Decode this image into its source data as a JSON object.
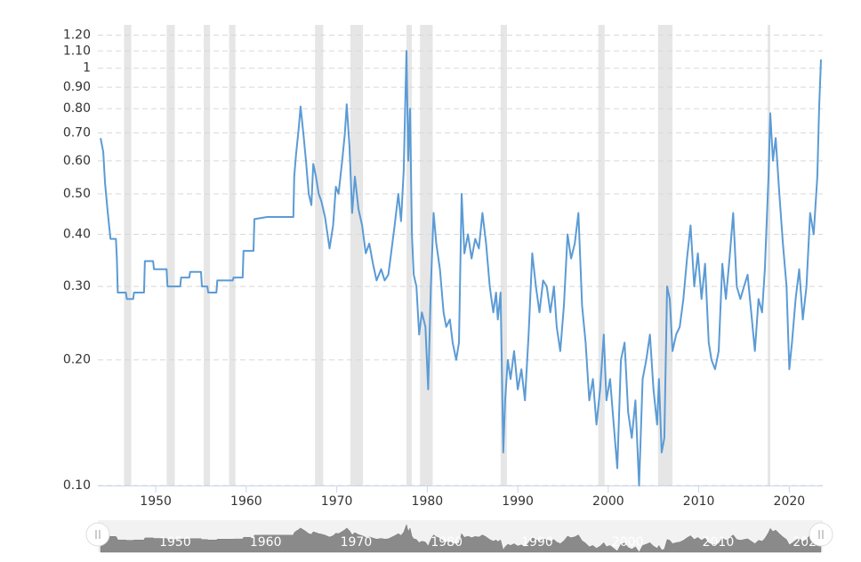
{
  "chart_data": {
    "type": "line",
    "log_y": true,
    "grid": true,
    "xlim": [
      1943.6,
      2023.7
    ],
    "ylim": [
      0.1,
      1.27
    ],
    "xticks": [
      1950,
      1960,
      1970,
      1980,
      1990,
      2000,
      2010,
      2020
    ],
    "yticks": [
      {
        "value": 0.1,
        "label": "0.10"
      },
      {
        "value": 0.2,
        "label": "0.20"
      },
      {
        "value": 0.3,
        "label": "0.30"
      },
      {
        "value": 0.4,
        "label": "0.40"
      },
      {
        "value": 0.5,
        "label": "0.50"
      },
      {
        "value": 0.6,
        "label": "0.60"
      },
      {
        "value": 0.7,
        "label": "0.70"
      },
      {
        "value": 0.8,
        "label": "0.80"
      },
      {
        "value": 0.9,
        "label": "0.90"
      },
      1,
      {
        "value": 1.1,
        "label": "1.10"
      },
      {
        "value": 1.2,
        "label": "1.20"
      }
    ],
    "shaded_ranges": [
      [
        1946.5,
        1947.3
      ],
      [
        1951.2,
        1952.1
      ],
      [
        1955.3,
        1956.0
      ],
      [
        1958.1,
        1958.8
      ],
      [
        1967.6,
        1968.5
      ],
      [
        1971.5,
        1972.9
      ],
      [
        1977.7,
        1978.3
      ],
      [
        1979.2,
        1980.6
      ],
      [
        1988.1,
        1988.8
      ],
      [
        1998.9,
        1999.6
      ],
      [
        2005.5,
        2007.1
      ],
      [
        2017.6,
        2017.9
      ]
    ],
    "shade_color": "#e6e6e6",
    "x": [
      1943.9,
      1944.2,
      1944.4,
      1944.7,
      1945.0,
      1945.6,
      1945.7,
      1945.8,
      1946.7,
      1946.8,
      1947.5,
      1947.6,
      1948.7,
      1948.8,
      1949.7,
      1949.8,
      1951.2,
      1951.3,
      1952.7,
      1952.8,
      1953.7,
      1953.8,
      1955.0,
      1955.1,
      1955.7,
      1955.8,
      1956.7,
      1956.8,
      1958.5,
      1958.6,
      1959.6,
      1959.7,
      1960.8,
      1960.9,
      1962.3,
      1965.2,
      1965.3,
      1965.5,
      1965.8,
      1966.0,
      1966.3,
      1966.6,
      1966.9,
      1967.2,
      1967.4,
      1967.7,
      1968.0,
      1968.3,
      1968.7,
      1969.2,
      1969.6,
      1969.9,
      1970.2,
      1970.6,
      1970.9,
      1971.1,
      1971.4,
      1971.7,
      1972.0,
      1972.4,
      1972.8,
      1973.2,
      1973.6,
      1974.0,
      1974.4,
      1974.9,
      1975.3,
      1975.7,
      1976.0,
      1976.4,
      1976.8,
      1977.1,
      1977.4,
      1977.7,
      1977.9,
      1978.1,
      1978.3,
      1978.5,
      1978.8,
      1979.1,
      1979.4,
      1979.8,
      1980.1,
      1980.4,
      1980.7,
      1981.0,
      1981.4,
      1981.8,
      1982.1,
      1982.5,
      1982.8,
      1983.2,
      1983.5,
      1983.8,
      1984.1,
      1984.5,
      1984.9,
      1985.3,
      1985.7,
      1986.1,
      1986.5,
      1986.9,
      1987.3,
      1987.6,
      1987.8,
      1988.1,
      1988.4,
      1988.6,
      1988.9,
      1989.2,
      1989.6,
      1990.0,
      1990.4,
      1990.8,
      1991.2,
      1991.6,
      1992.0,
      1992.4,
      1992.8,
      1993.2,
      1993.6,
      1994.0,
      1994.3,
      1994.7,
      1995.1,
      1995.5,
      1995.9,
      1996.3,
      1996.7,
      1997.1,
      1997.5,
      1997.9,
      1998.3,
      1998.7,
      1999.1,
      1999.5,
      1999.8,
      2000.2,
      2000.6,
      2001.0,
      2001.4,
      2001.8,
      2002.2,
      2002.6,
      2003.0,
      2003.4,
      2003.8,
      2004.2,
      2004.6,
      2005.0,
      2005.4,
      2005.6,
      2005.9,
      2006.2,
      2006.5,
      2006.8,
      2007.1,
      2007.5,
      2007.9,
      2008.3,
      2008.7,
      2009.1,
      2009.5,
      2009.9,
      2010.3,
      2010.7,
      2011.1,
      2011.4,
      2011.8,
      2012.2,
      2012.6,
      2013.0,
      2013.4,
      2013.8,
      2014.2,
      2014.6,
      2015.0,
      2015.4,
      2015.8,
      2016.2,
      2016.6,
      2017.0,
      2017.3,
      2017.7,
      2017.9,
      2018.2,
      2018.5,
      2018.9,
      2019.3,
      2019.7,
      2020.0,
      2020.3,
      2020.7,
      2021.1,
      2021.5,
      2021.9,
      2022.3,
      2022.7,
      2023.1,
      2023.3,
      2023.5
    ],
    "series": [
      {
        "color": "#5b9bd5",
        "values": [
          0.68,
          0.63,
          0.53,
          0.45,
          0.39,
          0.39,
          0.35,
          0.29,
          0.29,
          0.28,
          0.28,
          0.29,
          0.29,
          0.345,
          0.345,
          0.33,
          0.33,
          0.3,
          0.3,
          0.315,
          0.315,
          0.325,
          0.325,
          0.3,
          0.3,
          0.29,
          0.29,
          0.31,
          0.31,
          0.315,
          0.315,
          0.365,
          0.365,
          0.435,
          0.44,
          0.44,
          0.55,
          0.62,
          0.72,
          0.81,
          0.7,
          0.6,
          0.5,
          0.47,
          0.59,
          0.55,
          0.5,
          0.48,
          0.44,
          0.37,
          0.42,
          0.52,
          0.5,
          0.6,
          0.7,
          0.82,
          0.65,
          0.45,
          0.55,
          0.46,
          0.42,
          0.36,
          0.38,
          0.34,
          0.31,
          0.33,
          0.31,
          0.32,
          0.36,
          0.42,
          0.5,
          0.43,
          0.57,
          1.1,
          0.6,
          0.8,
          0.4,
          0.32,
          0.3,
          0.23,
          0.26,
          0.24,
          0.17,
          0.3,
          0.45,
          0.38,
          0.33,
          0.26,
          0.24,
          0.25,
          0.22,
          0.2,
          0.22,
          0.5,
          0.36,
          0.4,
          0.35,
          0.39,
          0.37,
          0.45,
          0.38,
          0.3,
          0.26,
          0.29,
          0.25,
          0.29,
          0.12,
          0.16,
          0.2,
          0.18,
          0.21,
          0.17,
          0.19,
          0.16,
          0.23,
          0.36,
          0.3,
          0.26,
          0.31,
          0.3,
          0.26,
          0.3,
          0.24,
          0.21,
          0.27,
          0.4,
          0.35,
          0.38,
          0.45,
          0.27,
          0.22,
          0.16,
          0.18,
          0.14,
          0.17,
          0.23,
          0.16,
          0.18,
          0.14,
          0.11,
          0.2,
          0.22,
          0.15,
          0.13,
          0.16,
          0.1,
          0.18,
          0.2,
          0.23,
          0.17,
          0.14,
          0.18,
          0.12,
          0.13,
          0.3,
          0.28,
          0.21,
          0.23,
          0.24,
          0.28,
          0.35,
          0.42,
          0.3,
          0.36,
          0.28,
          0.34,
          0.22,
          0.2,
          0.19,
          0.21,
          0.34,
          0.28,
          0.35,
          0.45,
          0.3,
          0.28,
          0.3,
          0.32,
          0.26,
          0.21,
          0.28,
          0.26,
          0.33,
          0.55,
          0.78,
          0.6,
          0.68,
          0.5,
          0.38,
          0.3,
          0.19,
          0.22,
          0.28,
          0.33,
          0.25,
          0.3,
          0.45,
          0.4,
          0.55,
          0.8,
          1.05
        ]
      }
    ]
  }
}
